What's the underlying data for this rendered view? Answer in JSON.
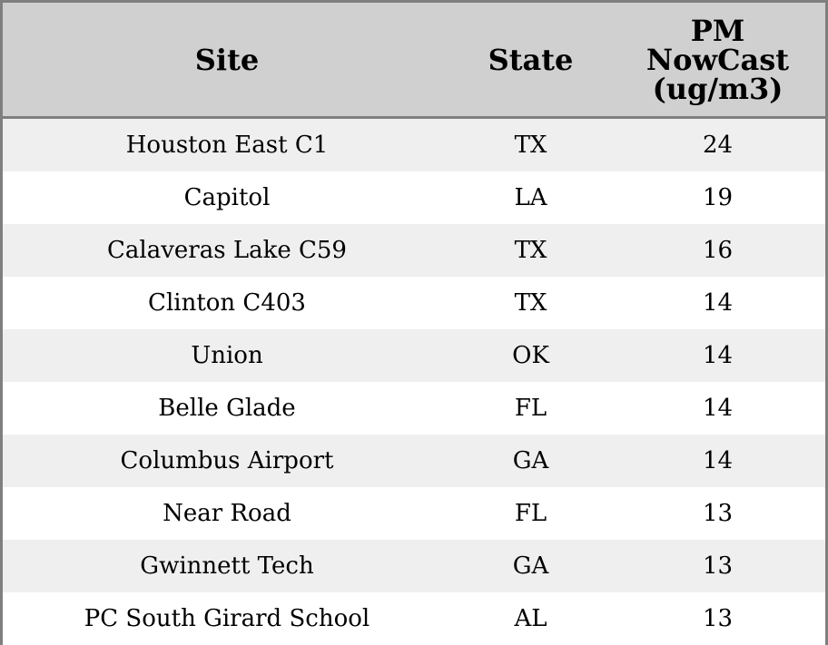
{
  "table": {
    "headers": {
      "site": "Site",
      "state": "State",
      "pm_lines": [
        "PM",
        "NowCast",
        "(ug/m3)"
      ]
    },
    "rows": [
      {
        "site": "Houston East C1",
        "state": "TX",
        "pm": "24"
      },
      {
        "site": "Capitol",
        "state": "LA",
        "pm": "19"
      },
      {
        "site": "Calaveras Lake C59",
        "state": "TX",
        "pm": "16"
      },
      {
        "site": "Clinton C403",
        "state": "TX",
        "pm": "14"
      },
      {
        "site": "Union",
        "state": "OK",
        "pm": "14"
      },
      {
        "site": "Belle Glade",
        "state": "FL",
        "pm": "14"
      },
      {
        "site": "Columbus Airport",
        "state": "GA",
        "pm": "14"
      },
      {
        "site": "Near Road",
        "state": "FL",
        "pm": "13"
      },
      {
        "site": "Gwinnett Tech",
        "state": "GA",
        "pm": "13"
      },
      {
        "site": "PC South Girard School",
        "state": "AL",
        "pm": "13"
      }
    ]
  },
  "colors": {
    "header_bg": "#d0d0d0",
    "row_alt_bg": "#efefef",
    "row_bg": "#ffffff",
    "border": "#7f7f7f"
  }
}
